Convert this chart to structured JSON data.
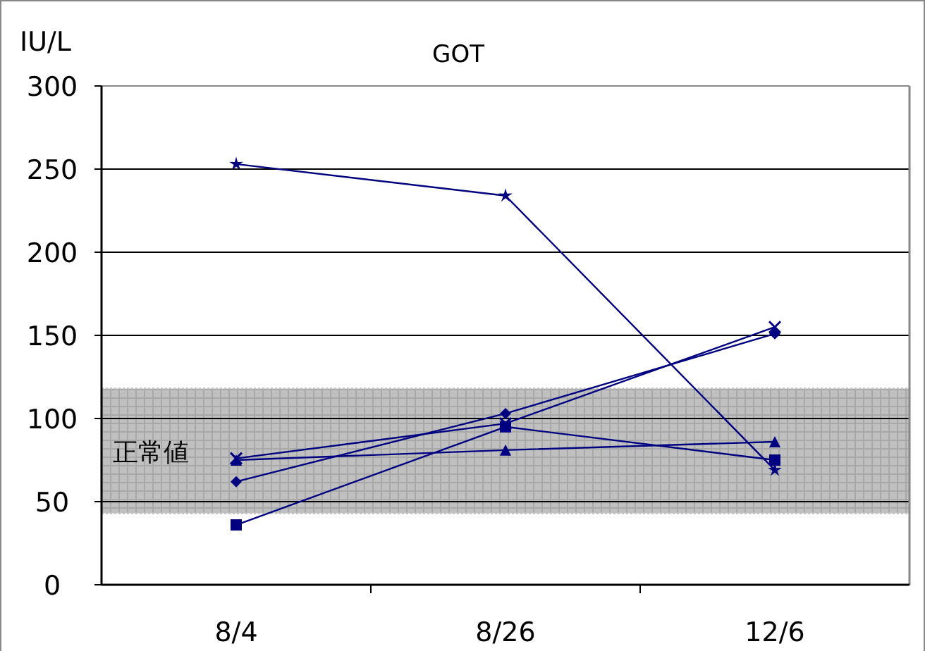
{
  "chart_data": {
    "type": "line",
    "title": "GOT",
    "ylabel": "IU/L",
    "categories": [
      "8/4",
      "8/26",
      "12/6"
    ],
    "series": [
      {
        "color": "#000080",
        "marker": "diamond",
        "values": [
          62,
          103,
          151
        ]
      },
      {
        "color": "#000080",
        "marker": "square",
        "values": [
          36,
          95,
          75
        ]
      },
      {
        "color": "#000080",
        "marker": "triangle",
        "values": [
          75,
          81,
          86
        ]
      },
      {
        "color": "#000080",
        "marker": "cross",
        "values": [
          76,
          97,
          155
        ]
      },
      {
        "color": "#000080",
        "marker": "star",
        "values": [
          253,
          234,
          69
        ]
      }
    ],
    "ylim": [
      0,
      300
    ],
    "yticks": [
      0,
      50,
      100,
      150,
      200,
      250,
      300
    ],
    "grid": "y",
    "bands": [
      {
        "axis": "y",
        "from": 43,
        "to": 118,
        "label": "正常値",
        "color": "#c0c0c0"
      }
    ]
  }
}
